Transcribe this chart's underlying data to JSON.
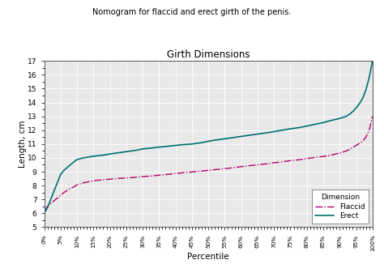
{
  "title_top": "Nomogram for flaccid and erect girth of the penis.",
  "title_chart": "Girth Dimensions",
  "xlabel": "Percentile",
  "ylabel": "Length, cm",
  "ylim": [
    5,
    17
  ],
  "yticks": [
    5,
    6,
    7,
    8,
    9,
    10,
    11,
    12,
    13,
    14,
    15,
    16,
    17
  ],
  "xtick_labels": [
    "0%",
    "5%",
    "10%",
    "15%",
    "20%",
    "25%",
    "30%",
    "35%",
    "40%",
    "45%",
    "50%",
    "55%",
    "60%",
    "65%",
    "70%",
    "75%",
    "80%",
    "85%",
    "90%",
    "95%",
    "100%"
  ],
  "flaccid_color": "#b5006e",
  "erect_color": "#007070",
  "bg_color": "#e8e8e8",
  "legend_title": "Dimension",
  "flaccid_label": "Flaccid",
  "erect_label": "Erect",
  "percentiles": [
    0,
    1,
    2,
    3,
    4,
    5,
    6,
    7,
    8,
    9,
    10,
    12,
    14,
    16,
    18,
    20,
    22,
    25,
    28,
    30,
    33,
    35,
    38,
    40,
    42,
    45,
    48,
    50,
    52,
    55,
    58,
    60,
    62,
    65,
    68,
    70,
    72,
    75,
    78,
    80,
    82,
    85,
    87,
    90,
    92,
    93,
    94,
    95,
    96,
    97,
    98,
    99,
    100
  ],
  "flaccid_values": [
    6.2,
    6.5,
    6.7,
    6.9,
    7.1,
    7.3,
    7.5,
    7.65,
    7.8,
    7.9,
    8.05,
    8.2,
    8.3,
    8.38,
    8.42,
    8.46,
    8.5,
    8.55,
    8.6,
    8.65,
    8.7,
    8.75,
    8.82,
    8.88,
    8.92,
    8.98,
    9.05,
    9.1,
    9.15,
    9.22,
    9.3,
    9.37,
    9.42,
    9.5,
    9.58,
    9.65,
    9.7,
    9.8,
    9.88,
    9.95,
    10.02,
    10.1,
    10.18,
    10.35,
    10.5,
    10.6,
    10.75,
    10.9,
    11.05,
    11.2,
    11.5,
    12.0,
    13.0
  ],
  "erect_values": [
    6.0,
    6.4,
    7.0,
    7.6,
    8.2,
    8.8,
    9.1,
    9.3,
    9.5,
    9.7,
    9.88,
    10.0,
    10.08,
    10.15,
    10.2,
    10.28,
    10.35,
    10.45,
    10.55,
    10.65,
    10.72,
    10.78,
    10.85,
    10.9,
    10.95,
    11.0,
    11.1,
    11.2,
    11.28,
    11.38,
    11.48,
    11.55,
    11.62,
    11.72,
    11.82,
    11.9,
    11.98,
    12.1,
    12.2,
    12.3,
    12.4,
    12.55,
    12.68,
    12.85,
    13.0,
    13.15,
    13.35,
    13.6,
    13.9,
    14.3,
    14.9,
    15.8,
    17.0
  ]
}
